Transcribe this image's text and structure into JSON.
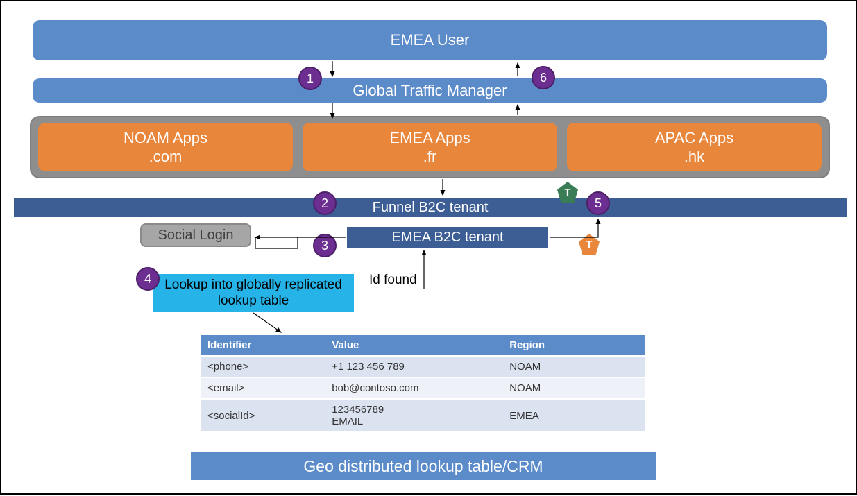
{
  "colors": {
    "blue": "#5b8bc9",
    "dark_blue": "#3d5e94",
    "orange": "#e8863c",
    "gray_group_bg": "#8e8e8e",
    "gray_social_bg": "#a6a6a6",
    "cyan": "#25b3e8",
    "purple": "#6c2e91",
    "pentagon_green": "#3a7c55",
    "pentagon_orange": "#e8863c",
    "table_header_bg": "#5b8bc9",
    "table_row_odd": "#dbe3f0",
    "table_row_even": "#eef2f8",
    "table_border": "#ffffff",
    "arrow": "#000000"
  },
  "bars": {
    "emea_user": "EMEA User",
    "gtm": "Global Traffic Manager",
    "funnel": "Funnel B2C tenant",
    "emea_tenant": "EMEA B2C tenant",
    "geo": "Geo distributed lookup table/CRM"
  },
  "apps": {
    "noam": {
      "title": "NOAM Apps",
      "sub": ".com"
    },
    "emea": {
      "title": "EMEA Apps",
      "sub": ".fr"
    },
    "apac": {
      "title": "APAC Apps",
      "sub": ".hk"
    }
  },
  "social_login": "Social Login",
  "lookup_label": "Lookup into globally replicated lookup table",
  "id_found": "Id found",
  "steps": {
    "1": "1",
    "2": "2",
    "3": "3",
    "4": "4",
    "5": "5",
    "6": "6"
  },
  "pentagons": {
    "t1": "T",
    "t2": "T"
  },
  "table": {
    "columns": [
      "Identifier",
      "Value",
      "Region"
    ],
    "rows": [
      [
        "<phone>",
        "+1 123 456 789",
        "NOAM"
      ],
      [
        "<email>",
        "bob@contoso.com",
        "NOAM"
      ],
      [
        "<socialId>",
        "123456789 EMAIL",
        "EMEA"
      ]
    ],
    "col_widths": [
      "28%",
      "40%",
      "32%"
    ]
  }
}
